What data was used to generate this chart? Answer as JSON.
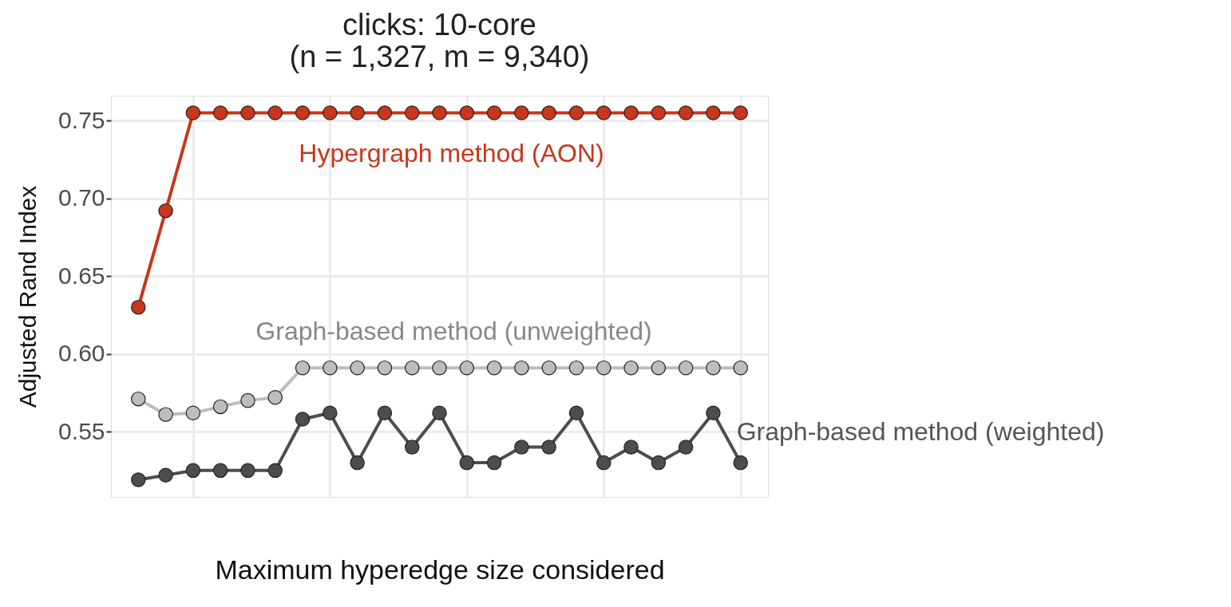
{
  "chart_data": {
    "type": "line",
    "title": [
      "clicks: 10-core",
      "(n = 1,327, m = 9,340)"
    ],
    "xlabel": "Maximum hyperedge size considered",
    "ylabel": "Adjusted Rand Index",
    "categories": [
      null,
      null,
      null,
      null,
      null,
      null,
      null,
      null,
      null,
      null,
      null,
      null,
      null,
      null,
      null,
      null,
      null,
      null,
      null,
      null,
      null,
      null,
      null
    ],
    "series": [
      {
        "name": "Hypergraph method (AON)",
        "color": "#c8361b",
        "values": [
          0.63,
          0.692,
          0.755,
          0.755,
          0.755,
          0.755,
          0.755,
          0.755,
          0.755,
          0.755,
          0.755,
          0.755,
          0.755,
          0.755,
          0.755,
          0.755,
          0.755,
          0.755,
          0.755,
          0.755,
          0.755,
          0.755,
          0.755
        ]
      },
      {
        "name": "Graph-based method (unweighted)",
        "color": "#bdbdbd",
        "values": [
          0.571,
          0.561,
          0.562,
          0.566,
          0.57,
          0.572,
          0.591,
          0.591,
          0.591,
          0.591,
          0.591,
          0.591,
          0.591,
          0.591,
          0.591,
          0.591,
          0.591,
          0.591,
          0.591,
          0.591,
          0.591,
          0.591,
          0.591
        ]
      },
      {
        "name": "Graph-based method (weighted)",
        "color": "#4d4d4d",
        "values": [
          0.519,
          0.522,
          0.525,
          0.525,
          0.525,
          0.525,
          0.558,
          0.562,
          0.53,
          0.562,
          0.54,
          0.562,
          0.53,
          0.53,
          0.54,
          0.54,
          0.562,
          0.53,
          0.54,
          0.53,
          0.54,
          0.562,
          0.53
        ]
      }
    ],
    "ylim": [
      0.508,
      0.766
    ],
    "yticks": [
      {
        "value": 0.55,
        "label": "0.55"
      },
      {
        "value": 0.6,
        "label": "0.60"
      },
      {
        "value": 0.65,
        "label": "0.65"
      },
      {
        "value": 0.7,
        "label": "0.70"
      },
      {
        "value": 0.75,
        "label": "0.75"
      }
    ],
    "tick_labels": "y",
    "grid": true,
    "marker": "circle",
    "line_style": "solid"
  }
}
